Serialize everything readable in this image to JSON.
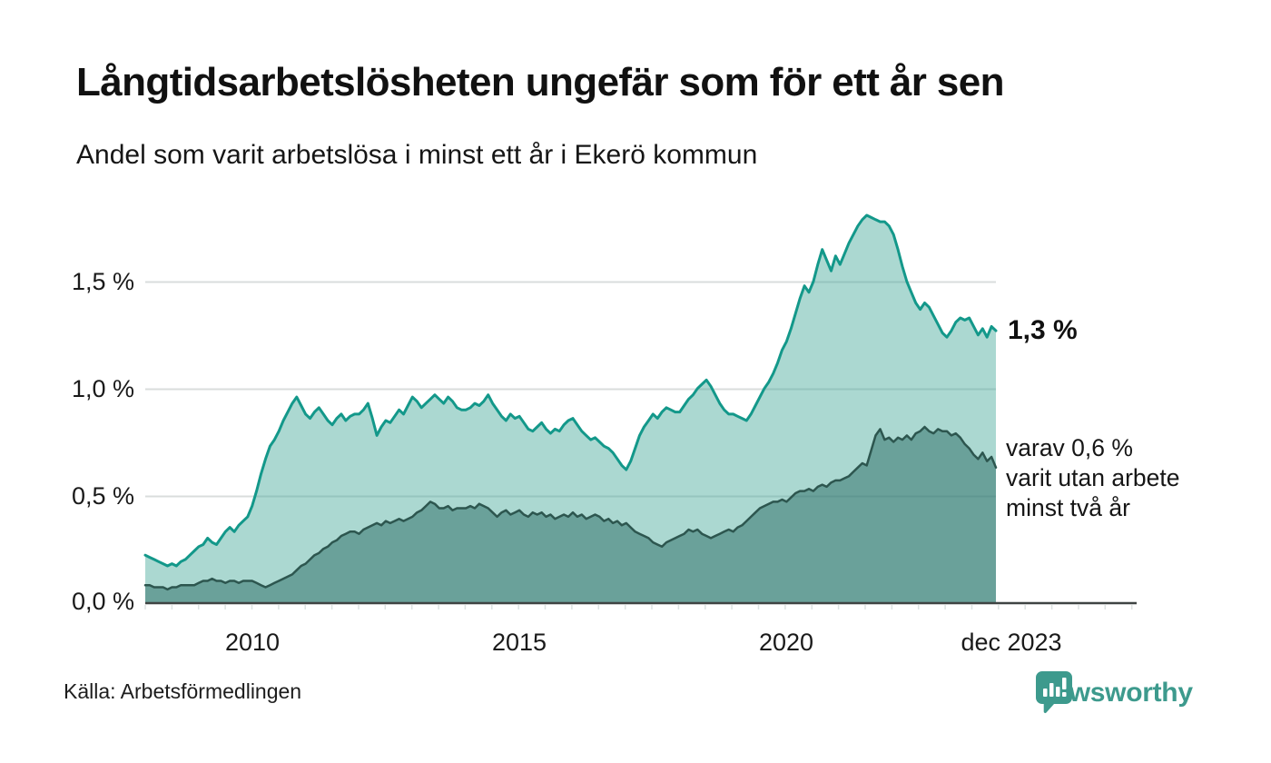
{
  "header": {
    "title": "Långtidsarbetslösheten ungefär som för ett år sen",
    "subtitle": "Andel som varit arbetslösa i minst ett år i Ekerö kommun"
  },
  "chart_data": {
    "type": "area",
    "title": "Långtidsarbetslösheten ungefär som för ett år sen",
    "subtitle": "Andel som varit arbetslösa i minst ett år i Ekerö kommun",
    "unit": "%",
    "frequency": "monthly",
    "x_start_year": 2008,
    "x_end_label": "dec 2023",
    "ylim": [
      0,
      1.9
    ],
    "grid": "horizontal",
    "y_ticks": [
      "1,5 %",
      "1,0 %",
      "0,5 %",
      "0,0 %"
    ],
    "y_tick_values": [
      1.5,
      1.0,
      0.5,
      0.0
    ],
    "x_ticks": [
      "2010",
      "2015",
      "2020",
      "dec 2023"
    ],
    "series": [
      {
        "name": "Arbetslösa minst ett år",
        "latest_value": 1.3,
        "line_color": "#13988a",
        "fill_color": "rgba(68,168,153,0.45)",
        "values": [
          0.22,
          0.21,
          0.2,
          0.19,
          0.18,
          0.17,
          0.18,
          0.17,
          0.19,
          0.2,
          0.22,
          0.24,
          0.26,
          0.27,
          0.3,
          0.28,
          0.27,
          0.3,
          0.33,
          0.35,
          0.33,
          0.36,
          0.38,
          0.4,
          0.45,
          0.52,
          0.6,
          0.67,
          0.73,
          0.76,
          0.8,
          0.85,
          0.89,
          0.93,
          0.96,
          0.92,
          0.88,
          0.86,
          0.89,
          0.91,
          0.88,
          0.85,
          0.83,
          0.86,
          0.88,
          0.85,
          0.87,
          0.88,
          0.88,
          0.9,
          0.93,
          0.86,
          0.78,
          0.82,
          0.85,
          0.84,
          0.87,
          0.9,
          0.88,
          0.92,
          0.96,
          0.94,
          0.91,
          0.93,
          0.95,
          0.97,
          0.95,
          0.93,
          0.96,
          0.94,
          0.91,
          0.9,
          0.9,
          0.91,
          0.93,
          0.92,
          0.94,
          0.97,
          0.93,
          0.9,
          0.87,
          0.85,
          0.88,
          0.86,
          0.87,
          0.84,
          0.81,
          0.8,
          0.82,
          0.84,
          0.81,
          0.79,
          0.81,
          0.8,
          0.83,
          0.85,
          0.86,
          0.83,
          0.8,
          0.78,
          0.76,
          0.77,
          0.75,
          0.73,
          0.72,
          0.7,
          0.67,
          0.64,
          0.62,
          0.66,
          0.72,
          0.78,
          0.82,
          0.85,
          0.88,
          0.86,
          0.89,
          0.91,
          0.9,
          0.89,
          0.89,
          0.92,
          0.95,
          0.97,
          1.0,
          1.02,
          1.04,
          1.01,
          0.97,
          0.93,
          0.9,
          0.88,
          0.88,
          0.87,
          0.86,
          0.85,
          0.88,
          0.92,
          0.96,
          1.0,
          1.03,
          1.07,
          1.12,
          1.18,
          1.22,
          1.28,
          1.35,
          1.42,
          1.48,
          1.45,
          1.5,
          1.58,
          1.65,
          1.6,
          1.55,
          1.62,
          1.58,
          1.63,
          1.68,
          1.72,
          1.76,
          1.79,
          1.81,
          1.8,
          1.79,
          1.78,
          1.78,
          1.76,
          1.72,
          1.65,
          1.57,
          1.5,
          1.45,
          1.4,
          1.37,
          1.4,
          1.38,
          1.34,
          1.3,
          1.26,
          1.24,
          1.27,
          1.31,
          1.33,
          1.32,
          1.33,
          1.29,
          1.25,
          1.28,
          1.24,
          1.29,
          1.27
        ]
      },
      {
        "name": "Varav utan arbete minst två år",
        "latest_value": 0.6,
        "line_color": "#2d564f",
        "fill_color": "rgba(41,106,99,0.5)",
        "values": [
          0.08,
          0.08,
          0.07,
          0.07,
          0.07,
          0.06,
          0.07,
          0.07,
          0.08,
          0.08,
          0.08,
          0.08,
          0.09,
          0.1,
          0.1,
          0.11,
          0.1,
          0.1,
          0.09,
          0.1,
          0.1,
          0.09,
          0.1,
          0.1,
          0.1,
          0.09,
          0.08,
          0.07,
          0.08,
          0.09,
          0.1,
          0.11,
          0.12,
          0.13,
          0.15,
          0.17,
          0.18,
          0.2,
          0.22,
          0.23,
          0.25,
          0.26,
          0.28,
          0.29,
          0.31,
          0.32,
          0.33,
          0.33,
          0.32,
          0.34,
          0.35,
          0.36,
          0.37,
          0.36,
          0.38,
          0.37,
          0.38,
          0.39,
          0.38,
          0.39,
          0.4,
          0.42,
          0.43,
          0.45,
          0.47,
          0.46,
          0.44,
          0.44,
          0.45,
          0.43,
          0.44,
          0.44,
          0.44,
          0.45,
          0.44,
          0.46,
          0.45,
          0.44,
          0.42,
          0.4,
          0.42,
          0.43,
          0.41,
          0.42,
          0.43,
          0.41,
          0.4,
          0.42,
          0.41,
          0.42,
          0.4,
          0.41,
          0.39,
          0.4,
          0.41,
          0.4,
          0.42,
          0.4,
          0.41,
          0.39,
          0.4,
          0.41,
          0.4,
          0.38,
          0.39,
          0.37,
          0.38,
          0.36,
          0.37,
          0.35,
          0.33,
          0.32,
          0.31,
          0.3,
          0.28,
          0.27,
          0.26,
          0.28,
          0.29,
          0.3,
          0.31,
          0.32,
          0.34,
          0.33,
          0.34,
          0.32,
          0.31,
          0.3,
          0.31,
          0.32,
          0.33,
          0.34,
          0.33,
          0.35,
          0.36,
          0.38,
          0.4,
          0.42,
          0.44,
          0.45,
          0.46,
          0.47,
          0.47,
          0.48,
          0.47,
          0.49,
          0.51,
          0.52,
          0.52,
          0.53,
          0.52,
          0.54,
          0.55,
          0.54,
          0.56,
          0.57,
          0.57,
          0.58,
          0.59,
          0.61,
          0.63,
          0.65,
          0.64,
          0.71,
          0.78,
          0.81,
          0.76,
          0.77,
          0.75,
          0.77,
          0.76,
          0.78,
          0.76,
          0.79,
          0.8,
          0.82,
          0.8,
          0.79,
          0.81,
          0.8,
          0.8,
          0.78,
          0.79,
          0.77,
          0.74,
          0.72,
          0.69,
          0.67,
          0.7,
          0.66,
          0.68,
          0.63
        ]
      }
    ],
    "annotations": {
      "latest_main": "1,3 %",
      "latest_secondary_lines": [
        "varav 0,6 %",
        "varit utan arbete",
        "minst två år"
      ]
    }
  },
  "footer": {
    "source": "Källa: Arbetsförmedlingen",
    "brand": "Newsworthy"
  }
}
